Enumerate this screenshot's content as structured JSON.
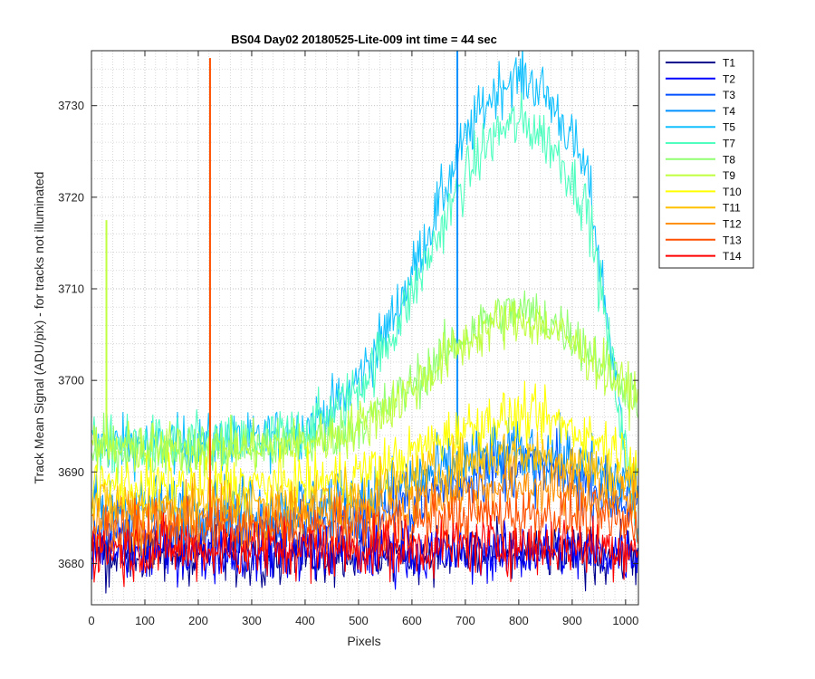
{
  "chart_data": {
    "type": "line",
    "title": "BS04 Day02 20180525-Lite-009 int time = 44 sec",
    "xlabel": "Pixels",
    "ylabel": "Track Mean Signal (ADU/pix) - for tracks not illuminated",
    "xlim": [
      0,
      1024
    ],
    "ylim": [
      3675.5,
      3736
    ],
    "x_ticks": [
      "0",
      "100",
      "200",
      "300",
      "400",
      "500",
      "600",
      "700",
      "800",
      "900",
      "1000"
    ],
    "y_ticks": [
      "3680",
      "3690",
      "3700",
      "3710",
      "3720",
      "3730"
    ],
    "x_tick_values": [
      0,
      100,
      200,
      300,
      400,
      500,
      600,
      700,
      800,
      900,
      1000
    ],
    "y_tick_values": [
      3680,
      3690,
      3700,
      3710,
      3720,
      3730
    ],
    "grid": "major dotted, minor dotted",
    "legend_position": "outside-right",
    "x_range": [
      1,
      1024
    ],
    "series": [
      {
        "name": "T1",
        "color": "#00008f",
        "base": 3681.0,
        "hump": 0,
        "noise": 2.2,
        "spikes": []
      },
      {
        "name": "T2",
        "color": "#0000ff",
        "base": 3681.2,
        "hump": 0,
        "noise": 2.2,
        "spikes": []
      },
      {
        "name": "T3",
        "color": "#0050ff",
        "base": 3683.5,
        "hump": 7,
        "noise": 2.4,
        "spikes": []
      },
      {
        "name": "T4",
        "color": "#0090ff",
        "base": 3686.0,
        "hump": 6,
        "noise": 2.6,
        "spikes": [
          {
            "x": 685,
            "from": 3693,
            "to": 3736
          }
        ]
      },
      {
        "name": "T5",
        "color": "#10c0ff",
        "base": 3693.0,
        "hump": 40,
        "noise": 2.2,
        "spikes": []
      },
      {
        "name": "T7",
        "color": "#50ffc0",
        "base": 3693.0,
        "hump": 35,
        "noise": 2.2,
        "spikes": []
      },
      {
        "name": "T8",
        "color": "#90ff70",
        "base": 3692.5,
        "hump": 15,
        "noise": 2.0,
        "spikes": []
      },
      {
        "name": "T9",
        "color": "#c0ff40",
        "base": 3692.5,
        "hump": 14,
        "noise": 2.0,
        "spikes": [
          {
            "x": 28,
            "from": 3693,
            "to": 3717.5
          }
        ]
      },
      {
        "name": "T10",
        "color": "#ffff00",
        "base": 3688.5,
        "hump": 7.5,
        "noise": 2.1,
        "spikes": []
      },
      {
        "name": "T11",
        "color": "#ffc000",
        "base": 3686.5,
        "hump": 5.5,
        "noise": 2.1,
        "spikes": []
      },
      {
        "name": "T12",
        "color": "#ff9000",
        "base": 3685.0,
        "hump": 3.5,
        "noise": 2.2,
        "spikes": []
      },
      {
        "name": "T13",
        "color": "#ff5000",
        "base": 3683.5,
        "hump": 2.0,
        "noise": 2.2,
        "spikes": [
          {
            "x": 222,
            "from": 3684,
            "to": 3735.2
          }
        ]
      },
      {
        "name": "T14",
        "color": "#ff0000",
        "base": 3681.5,
        "hump": 0.5,
        "noise": 2.3,
        "spikes": []
      }
    ]
  }
}
